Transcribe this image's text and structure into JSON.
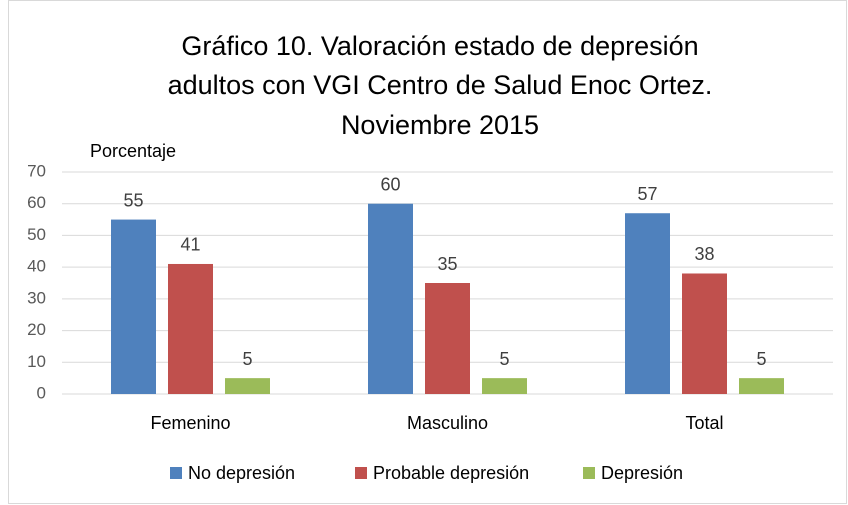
{
  "chart_data": {
    "type": "bar",
    "title": [
      "Gráfico 10. Valoración estado de depresión",
      "adultos con VGI Centro de Salud Enoc Ortez.",
      "Noviembre 2015"
    ],
    "y_label": "Porcentaje",
    "categories": [
      "Femenino",
      "Masculino",
      "Total"
    ],
    "series": [
      {
        "name": "No depresión",
        "color": "#4f81bd",
        "values": [
          55,
          60,
          57
        ]
      },
      {
        "name": "Probable depresión",
        "color": "#c0504d",
        "values": [
          41,
          35,
          38
        ]
      },
      {
        "name": "Depresión",
        "color": "#9bbb59",
        "values": [
          5,
          5,
          5
        ]
      }
    ],
    "ylim": [
      0,
      70
    ],
    "yticks": [
      0,
      10,
      20,
      30,
      40,
      50,
      60,
      70
    ],
    "grid": true,
    "legend": "bottom"
  }
}
